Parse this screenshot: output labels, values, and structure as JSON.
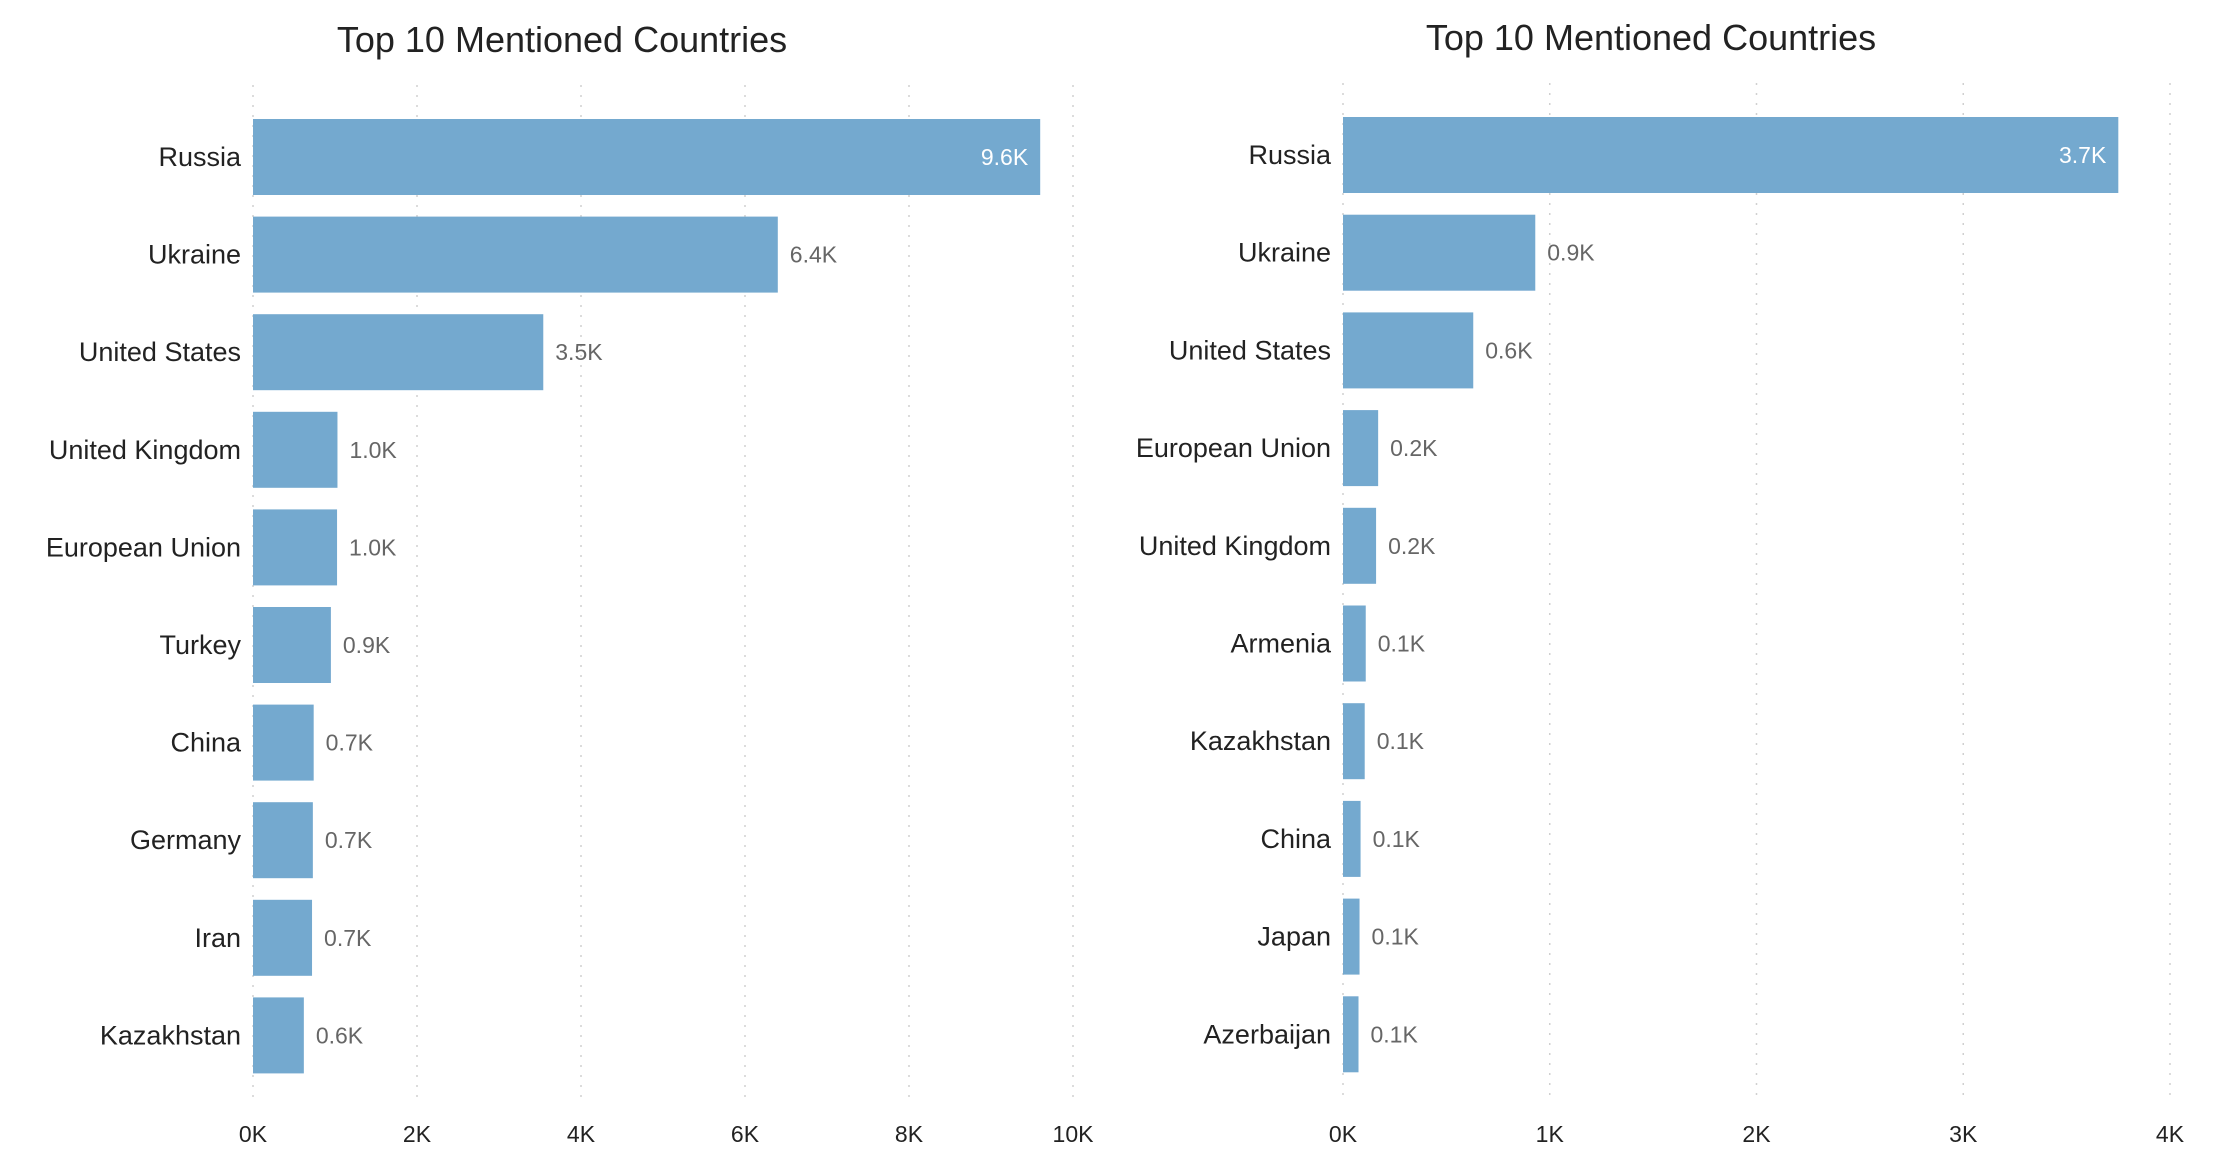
{
  "colors": {
    "bar": "#74a9cf",
    "grid": "#d0d0d0",
    "text": "#222222",
    "value_text": "#666666"
  },
  "chart_data": [
    {
      "type": "bar",
      "orientation": "horizontal",
      "title": "Top 10 Mentioned Countries",
      "categories": [
        "Russia",
        "Ukraine",
        "United States",
        "United Kingdom",
        "European Union",
        "Turkey",
        "China",
        "Germany",
        "Iran",
        "Kazakhstan"
      ],
      "values": [
        9600,
        6400,
        3540,
        1030,
        1025,
        950,
        740,
        730,
        720,
        620
      ],
      "value_labels": [
        "9.6K",
        "6.4K",
        "3.5K",
        "1.0K",
        "1.0K",
        "0.9K",
        "0.7K",
        "0.7K",
        "0.7K",
        "0.6K"
      ],
      "xlim": [
        0,
        10000
      ],
      "xticks": [
        0,
        2000,
        4000,
        6000,
        8000,
        10000
      ],
      "xtick_labels": [
        "0K",
        "2K",
        "4K",
        "6K",
        "8K",
        "10K"
      ],
      "grid": true
    },
    {
      "type": "bar",
      "orientation": "horizontal",
      "title": "Top 10 Mentioned Countries",
      "categories": [
        "Russia",
        "Ukraine",
        "United States",
        "European Union",
        "United Kingdom",
        "Armenia",
        "Kazakhstan",
        "China",
        "Japan",
        "Azerbaijan"
      ],
      "values": [
        3750,
        930,
        630,
        170,
        160,
        110,
        105,
        85,
        80,
        75
      ],
      "value_labels": [
        "3.7K",
        "0.9K",
        "0.6K",
        "0.2K",
        "0.2K",
        "0.1K",
        "0.1K",
        "0.1K",
        "0.1K",
        "0.1K"
      ],
      "xlim": [
        0,
        4000
      ],
      "xticks": [
        0,
        1000,
        2000,
        3000,
        4000
      ],
      "xtick_labels": [
        "0K",
        "1K",
        "2K",
        "3K",
        "4K"
      ],
      "grid": true
    }
  ]
}
